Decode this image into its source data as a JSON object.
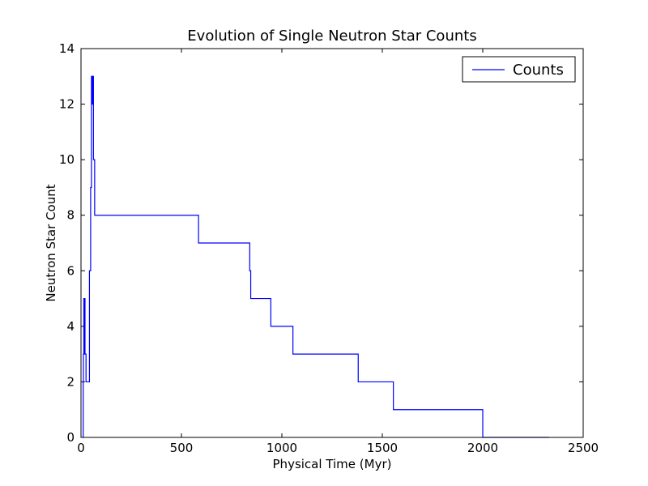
{
  "chart_data": {
    "type": "line",
    "title": "Evolution of Single Neutron Star Counts",
    "xlabel": "Physical Time (Myr)",
    "ylabel": "Neutron Star Count",
    "xlim": [
      0,
      2500
    ],
    "ylim": [
      0,
      14
    ],
    "xticks": [
      0,
      500,
      1000,
      1500,
      2000,
      2500
    ],
    "yticks": [
      0,
      2,
      4,
      6,
      8,
      10,
      12,
      14
    ],
    "grid": false,
    "legend_position": "top-right",
    "step": "post",
    "series": [
      {
        "name": "Counts",
        "color": "#0000ff",
        "x": [
          10,
          11,
          12,
          14,
          17,
          18,
          20,
          25,
          33,
          42,
          48,
          52,
          55,
          58,
          62,
          68,
          585,
          840,
          845,
          945,
          1055,
          1380,
          1555,
          2000,
          2330
        ],
        "y": [
          0,
          2,
          3,
          5,
          3,
          5,
          3,
          2,
          2,
          6,
          9,
          13,
          12,
          13,
          10,
          8,
          7,
          6,
          5,
          4,
          3,
          2,
          1,
          0,
          0
        ]
      }
    ]
  }
}
